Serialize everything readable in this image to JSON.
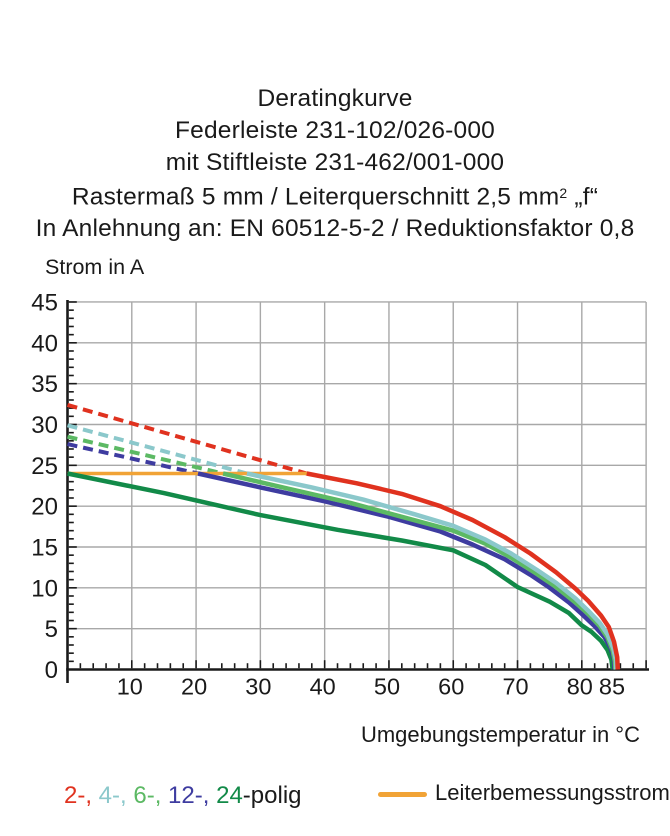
{
  "title_block": {
    "line1": "Deratingkurve",
    "line2": "Federleiste 231-102/026-000",
    "line3": "mit Stiftleiste 231-462/001-000",
    "line4_pre": "Rastermaß 5 mm / Leiterquerschnitt 2,5 mm",
    "line4_sup": "2",
    "line4_post": " „f“",
    "line5": "In Anlehnung an: EN 60512-5-2 / Reduktionsfaktor 0,8"
  },
  "chart_data": {
    "type": "line",
    "ylabel": "Strom in A",
    "xlabel": "Umgebungstemperatur in °C",
    "xlim": [
      0,
      90
    ],
    "ylim": [
      0,
      45
    ],
    "x_ticks": [
      10,
      20,
      30,
      40,
      50,
      60,
      70,
      80,
      85
    ],
    "y_ticks": [
      0,
      5,
      10,
      15,
      20,
      25,
      30,
      35,
      40,
      45
    ],
    "x_gridlines": [
      10,
      20,
      30,
      40,
      50,
      60,
      70,
      80,
      90
    ],
    "y_gridlines": [
      5,
      10,
      15,
      20,
      25,
      30,
      35,
      40,
      45
    ],
    "x_minor_step": 2,
    "y_minor_step": 1,
    "grid_color": "#a8a8a8",
    "axis_color": "#1a1a1a",
    "series": [
      {
        "name": "2-polig-derating-dashed",
        "color": "#e0321f",
        "dashed": true,
        "width": 4,
        "points": [
          [
            0,
            32.4
          ],
          [
            37.2,
            24
          ]
        ]
      },
      {
        "name": "4-polig-derating-dashed",
        "color": "#8bc8cb",
        "dashed": true,
        "width": 4,
        "points": [
          [
            0,
            29.9
          ],
          [
            27.9,
            24
          ]
        ]
      },
      {
        "name": "6-polig-derating-dashed",
        "color": "#5cb964",
        "dashed": true,
        "width": 4,
        "points": [
          [
            0,
            28.5
          ],
          [
            24.2,
            24
          ]
        ]
      },
      {
        "name": "12-polig-derating-dashed",
        "color": "#3e3ca0",
        "dashed": true,
        "width": 4,
        "points": [
          [
            0,
            27.6
          ],
          [
            20.3,
            24
          ]
        ]
      },
      {
        "name": "Leiterbemessungsstrom",
        "color": "#f1a336",
        "dashed": false,
        "width": 3.5,
        "points": [
          [
            0,
            24
          ],
          [
            37.4,
            24
          ]
        ]
      },
      {
        "name": "24-polig",
        "color": "#128a48",
        "dashed": false,
        "width": 4.5,
        "points": [
          [
            0,
            24
          ],
          [
            15,
            21.6
          ],
          [
            30,
            18.9
          ],
          [
            42,
            17.1
          ],
          [
            52,
            15.8
          ],
          [
            60,
            14.6
          ],
          [
            65,
            12.8
          ],
          [
            70,
            10.1
          ],
          [
            75,
            8.3
          ],
          [
            78,
            6.9
          ],
          [
            80,
            5.4
          ],
          [
            81.5,
            4.6
          ],
          [
            83,
            3.5
          ],
          [
            84,
            2.4
          ],
          [
            84.6,
            1.2
          ],
          [
            84.8,
            0
          ]
        ]
      },
      {
        "name": "12-polig",
        "color": "#3e3ca0",
        "dashed": false,
        "width": 4.5,
        "points": [
          [
            20.3,
            24
          ],
          [
            30,
            22.3
          ],
          [
            40,
            20.6
          ],
          [
            50,
            18.7
          ],
          [
            58,
            16.9
          ],
          [
            63,
            15.3
          ],
          [
            68,
            13.5
          ],
          [
            72,
            11.6
          ],
          [
            75,
            10.0
          ],
          [
            78,
            8.2
          ],
          [
            80,
            6.8
          ],
          [
            82,
            5.3
          ],
          [
            83.5,
            4.0
          ],
          [
            84.5,
            2.6
          ],
          [
            85,
            1.2
          ],
          [
            85.05,
            0
          ]
        ]
      },
      {
        "name": "6-polig",
        "color": "#5cb964",
        "dashed": false,
        "width": 4.5,
        "points": [
          [
            24.2,
            24
          ],
          [
            34,
            22.2
          ],
          [
            44,
            20.4
          ],
          [
            52,
            18.7
          ],
          [
            60,
            17.0
          ],
          [
            65,
            15.4
          ],
          [
            69,
            13.7
          ],
          [
            73,
            11.7
          ],
          [
            76,
            10.1
          ],
          [
            79,
            8.2
          ],
          [
            81,
            6.8
          ],
          [
            82.8,
            5.3
          ],
          [
            84,
            3.9
          ],
          [
            84.8,
            2.3
          ],
          [
            85.15,
            1.0
          ],
          [
            85.2,
            0
          ]
        ]
      },
      {
        "name": "4-polig",
        "color": "#8bc8cb",
        "dashed": false,
        "width": 4.5,
        "points": [
          [
            27.9,
            24
          ],
          [
            38,
            22.3
          ],
          [
            46,
            20.8
          ],
          [
            54,
            19.0
          ],
          [
            60,
            17.6
          ],
          [
            65,
            15.9
          ],
          [
            69,
            14.2
          ],
          [
            73,
            12.2
          ],
          [
            76,
            10.6
          ],
          [
            79,
            8.7
          ],
          [
            81,
            7.2
          ],
          [
            82.8,
            5.7
          ],
          [
            84,
            4.3
          ],
          [
            84.9,
            2.6
          ],
          [
            85.3,
            1.2
          ],
          [
            85.35,
            0
          ]
        ]
      },
      {
        "name": "2-polig",
        "color": "#e0321f",
        "dashed": false,
        "width": 4.5,
        "points": [
          [
            37.2,
            24
          ],
          [
            45,
            22.8
          ],
          [
            52,
            21.5
          ],
          [
            58,
            20.0
          ],
          [
            63,
            18.3
          ],
          [
            68,
            16.2
          ],
          [
            72,
            14.2
          ],
          [
            76,
            11.9
          ],
          [
            79,
            9.9
          ],
          [
            81,
            8.4
          ],
          [
            83,
            6.6
          ],
          [
            84.2,
            5.2
          ],
          [
            85,
            3.4
          ],
          [
            85.5,
            1.5
          ],
          [
            85.6,
            0
          ]
        ]
      }
    ]
  },
  "legend": {
    "poles_parts": [
      {
        "text": "2-,",
        "color": "#e0321f"
      },
      {
        "text": " 4-,",
        "color": "#8bc8cb"
      },
      {
        "text": " 6-,",
        "color": "#5cb964"
      },
      {
        "text": " 12-,",
        "color": "#3e3ca0"
      },
      {
        "text": " 24",
        "color": "#128a48"
      },
      {
        "text": "-polig",
        "color": "#1a1a1a"
      }
    ],
    "rated_label": "Leiterbemessungsstrom",
    "rated_color": "#f1a336"
  }
}
